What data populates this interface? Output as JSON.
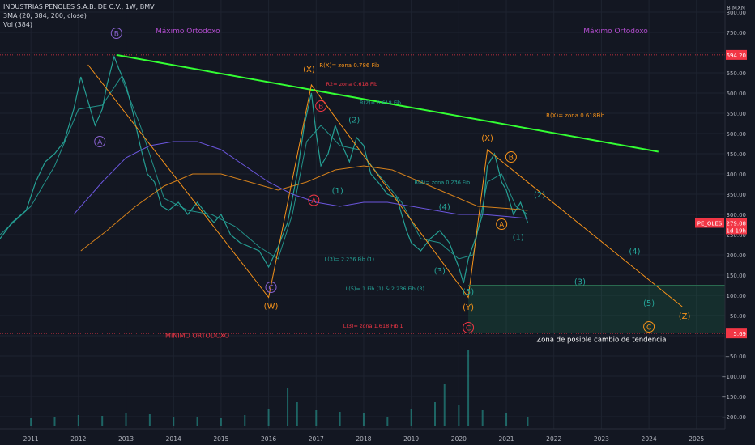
{
  "header": {
    "title": "INDUSTRIAS PENOLES S.A.B. DE C.V., 1W, BMV",
    "indicator_ma": "3MA (20, 384, 200, close)",
    "indicator_vol": "Vol (384)"
  },
  "chart_data": {
    "type": "line",
    "symbol": "PE_OLES",
    "currency_label": "8 MXN",
    "last_price": "279.08",
    "countdown": "1d 19h",
    "y_ticks": [
      -200,
      -150,
      -100,
      -50,
      0,
      50,
      100,
      150,
      200,
      250,
      300,
      350,
      400,
      450,
      500,
      550,
      600,
      650,
      700,
      750,
      800
    ],
    "y_tick_labels": [
      "−200.00",
      "−150.00",
      "−100.00",
      "−50.00",
      "0.00",
      "50.00",
      "100.00",
      "150.00",
      "200.00",
      "250.00",
      "300.00",
      "350.00",
      "400.00",
      "450.00",
      "500.00",
      "550.00",
      "600.00",
      "650.00",
      "700.00",
      "750.00",
      "800.00"
    ],
    "ylim": [
      -230,
      830
    ],
    "x_ticks": [
      2011,
      2012,
      2013,
      2014,
      2015,
      2016,
      2017,
      2018,
      2019,
      2020,
      2021,
      2022,
      2023,
      2024,
      2025
    ],
    "x_tick_labels": [
      "2011",
      "2012",
      "2013",
      "2014",
      "2015",
      "2016",
      "2017",
      "2018",
      "2019",
      "2020",
      "2021",
      "2022",
      "2023",
      "2024",
      "2025"
    ],
    "xlim": [
      2010.35,
      2025.6
    ],
    "price_markers": [
      {
        "value": 694.2,
        "label": "694.20"
      },
      {
        "value": 5.69,
        "label": "5.69"
      }
    ],
    "series": [
      {
        "name": "price",
        "color": "#26a69a",
        "x": [
          2010.35,
          2010.6,
          2010.9,
          2011.1,
          2011.3,
          2011.5,
          2011.7,
          2011.9,
          2012.05,
          2012.2,
          2012.35,
          2012.5,
          2012.6,
          2012.75,
          2012.85,
          2013.0,
          2013.15,
          2013.3,
          2013.45,
          2013.6,
          2013.75,
          2013.9,
          2014.1,
          2014.3,
          2014.5,
          2014.7,
          2014.85,
          2015.0,
          2015.2,
          2015.4,
          2015.6,
          2015.8,
          2016.0,
          2016.2,
          2016.4,
          2016.6,
          2016.75,
          2016.9,
          2017.0,
          2017.1,
          2017.25,
          2017.4,
          2017.55,
          2017.7,
          2017.85,
          2018.0,
          2018.15,
          2018.3,
          2018.5,
          2018.7,
          2018.9,
          2019.0,
          2019.2,
          2019.4,
          2019.6,
          2019.8,
          2020.0,
          2020.1,
          2020.2,
          2020.35,
          2020.5,
          2020.6,
          2020.75,
          2020.9,
          2021.0,
          2021.15,
          2021.3,
          2021.45
        ],
        "values": [
          240,
          280,
          310,
          380,
          430,
          450,
          480,
          560,
          640,
          580,
          520,
          560,
          620,
          690,
          660,
          620,
          550,
          470,
          400,
          380,
          320,
          310,
          330,
          300,
          330,
          300,
          280,
          300,
          250,
          230,
          220,
          210,
          170,
          220,
          280,
          400,
          520,
          600,
          500,
          420,
          450,
          520,
          470,
          430,
          490,
          470,
          400,
          380,
          350,
          340,
          260,
          230,
          210,
          240,
          260,
          230,
          170,
          130,
          190,
          240,
          300,
          420,
          450,
          380,
          360,
          300,
          330,
          280
        ]
      },
      {
        "name": "ma20",
        "color": "#26a69a",
        "x": [
          2010.35,
          2011.0,
          2011.5,
          2012.0,
          2012.5,
          2012.9,
          2013.3,
          2013.8,
          2014.3,
          2014.8,
          2015.3,
          2015.8,
          2016.2,
          2016.5,
          2016.8,
          2017.1,
          2017.5,
          2017.9,
          2018.3,
          2018.8,
          2019.2,
          2019.6,
          2020.0,
          2020.3,
          2020.6,
          2020.9,
          2021.2,
          2021.45
        ],
        "values": [
          250,
          320,
          420,
          560,
          570,
          640,
          520,
          340,
          310,
          300,
          270,
          220,
          190,
          300,
          480,
          520,
          470,
          460,
          400,
          330,
          240,
          230,
          190,
          200,
          380,
          400,
          320,
          300
        ]
      },
      {
        "name": "ma384",
        "color": "#7b61ff",
        "x": [
          2011.9,
          2012.5,
          2013.0,
          2013.5,
          2014.0,
          2014.5,
          2015.0,
          2015.5,
          2016.0,
          2016.5,
          2017.0,
          2017.5,
          2018.0,
          2018.5,
          2019.0,
          2019.5,
          2020.0,
          2020.5,
          2021.0,
          2021.45
        ],
        "values": [
          300,
          380,
          440,
          470,
          480,
          480,
          460,
          420,
          380,
          350,
          330,
          320,
          330,
          330,
          320,
          310,
          300,
          300,
          295,
          290
        ]
      },
      {
        "name": "ma200",
        "color": "#f7931a",
        "x": [
          2012.05,
          2012.6,
          2013.2,
          2013.8,
          2014.4,
          2015.0,
          2015.6,
          2016.2,
          2016.8,
          2017.4,
          2018.0,
          2018.6,
          2019.2,
          2019.8,
          2020.4,
          2021.0,
          2021.45
        ],
        "values": [
          210,
          260,
          320,
          370,
          400,
          400,
          380,
          360,
          380,
          410,
          420,
          410,
          380,
          350,
          320,
          315,
          310
        ]
      }
    ],
    "volume": {
      "color": "#26a69a",
      "x": [
        2011.0,
        2011.5,
        2012.0,
        2012.5,
        2013.0,
        2013.5,
        2014.0,
        2014.5,
        2015.0,
        2015.5,
        2016.0,
        2016.4,
        2016.6,
        2017.0,
        2017.5,
        2018.0,
        2018.5,
        2019.0,
        2019.5,
        2019.7,
        2020.0,
        2020.2,
        2020.5,
        2021.0,
        2021.45
      ],
      "values": [
        10,
        12,
        14,
        13,
        16,
        15,
        12,
        11,
        10,
        14,
        22,
        48,
        30,
        20,
        18,
        16,
        12,
        22,
        30,
        52,
        26,
        95,
        20,
        16,
        12
      ]
    },
    "lines": [
      {
        "color": "#33ff33",
        "width": 2,
        "points": [
          [
            2012.8,
            694.2
          ],
          [
            2024.2,
            455
          ]
        ]
      },
      {
        "color": "#f7931a",
        "width": 1,
        "points": [
          [
            2012.2,
            670
          ],
          [
            2016.0,
            95
          ],
          [
            2016.9,
            620
          ],
          [
            2020.2,
            95
          ],
          [
            2020.6,
            460
          ],
          [
            2024.7,
            72
          ]
        ]
      },
      {
        "color": "#2a6a4f",
        "width": 1,
        "points": [
          [
            2020.2,
            125
          ],
          [
            2025.6,
            125
          ]
        ]
      }
    ],
    "zone": {
      "x0": 2020.2,
      "x1": 2025.6,
      "y0": 5.69,
      "y1": 125,
      "fill": "rgba(38,166,105,0.16)"
    },
    "wave_labels": [
      {
        "text": "B",
        "x": 2012.8,
        "y": 748,
        "color": "#8a63d2",
        "circle": true
      },
      {
        "text": "A",
        "x": 2012.45,
        "y": 480,
        "color": "#8a63d2",
        "circle": true
      },
      {
        "text": "C",
        "x": 2016.05,
        "y": 120,
        "color": "#8a63d2",
        "circle": true
      },
      {
        "text": "(W)",
        "x": 2016.05,
        "y": 75,
        "color": "#f7931a"
      },
      {
        "text": "(X)",
        "x": 2016.85,
        "y": 660,
        "color": "#f7931a"
      },
      {
        "text": "B",
        "x": 2017.1,
        "y": 568,
        "color": "#f23645",
        "circle": true
      },
      {
        "text": "A",
        "x": 2016.95,
        "y": 335,
        "color": "#f23645",
        "circle": true
      },
      {
        "text": "(2)",
        "x": 2017.8,
        "y": 535,
        "color": "#26a69a"
      },
      {
        "text": "(1)",
        "x": 2017.45,
        "y": 360,
        "color": "#26a69a"
      },
      {
        "text": "(4)",
        "x": 2019.7,
        "y": 320,
        "color": "#26a69a"
      },
      {
        "text": "(3)",
        "x": 2019.6,
        "y": 162,
        "color": "#26a69a"
      },
      {
        "text": "(5)",
        "x": 2020.2,
        "y": 110,
        "color": "#26a69a"
      },
      {
        "text": "(Y)",
        "x": 2020.2,
        "y": 72,
        "color": "#f7931a"
      },
      {
        "text": "C",
        "x": 2020.2,
        "y": 20,
        "color": "#f23645",
        "circle": true
      },
      {
        "text": "(X)",
        "x": 2020.6,
        "y": 490,
        "color": "#f7931a"
      },
      {
        "text": "B",
        "x": 2021.1,
        "y": 442,
        "color": "#f7931a",
        "circle": true
      },
      {
        "text": "A",
        "x": 2020.9,
        "y": 276,
        "color": "#f7931a",
        "circle": true
      },
      {
        "text": "(1)",
        "x": 2021.25,
        "y": 245,
        "color": "#26a69a"
      },
      {
        "text": "(2)",
        "x": 2021.7,
        "y": 350,
        "color": "#26a69a"
      },
      {
        "text": "(3)",
        "x": 2022.55,
        "y": 135,
        "color": "#26a69a"
      },
      {
        "text": "(4)",
        "x": 2023.7,
        "y": 210,
        "color": "#26a69a"
      },
      {
        "text": "(5)",
        "x": 2024.0,
        "y": 82,
        "color": "#26a69a"
      },
      {
        "text": "C",
        "x": 2024.0,
        "y": 22,
        "color": "#f7931a",
        "circle": true
      },
      {
        "text": "(Z)",
        "x": 2024.75,
        "y": 50,
        "color": "#f7931a"
      }
    ],
    "annotations": [
      {
        "text": "Máximo Ortodoxo",
        "x": 2014.3,
        "y": 748,
        "color": "#b04ccc",
        "size": 9
      },
      {
        "text": "Máximo Ortodoxo",
        "x": 2023.3,
        "y": 748,
        "color": "#b04ccc",
        "size": 9
      },
      {
        "text": "MINIMO ORTODOXO",
        "x": 2014.5,
        "y": -5,
        "color": "#f23645",
        "size": 8
      },
      {
        "text": "R(X)= zona 0.786 Fib",
        "x": 2017.7,
        "y": 664,
        "color": "#f7931a",
        "size": 7
      },
      {
        "text": "R2= zona 0.618 Fib",
        "x": 2017.75,
        "y": 618,
        "color": "#f23645",
        "size": 6.5
      },
      {
        "text": "R(2)= 0.618 Fib",
        "x": 2018.35,
        "y": 572,
        "color": "#26a69a",
        "size": 6.5
      },
      {
        "text": "R(X)= zona 0.618Fib",
        "x": 2022.45,
        "y": 540,
        "color": "#f7931a",
        "size": 7
      },
      {
        "text": "R(4)= zona 0.236 Fib",
        "x": 2019.65,
        "y": 375,
        "color": "#26a69a",
        "size": 6.5
      },
      {
        "text": "L(3)= 2.236 Fib (1)",
        "x": 2017.7,
        "y": 185,
        "color": "#26a69a",
        "size": 6.5
      },
      {
        "text": "L(5)= 1 Fib (1) & 2.236 Fib (3)",
        "x": 2018.45,
        "y": 112,
        "color": "#26a69a",
        "size": 6.5
      },
      {
        "text": "L(3)= zona 1.618 Fib 1",
        "x": 2018.2,
        "y": 20,
        "color": "#f23645",
        "size": 6.5
      },
      {
        "text": "Zona de posible cambio de tendencia",
        "x": 2023.0,
        "y": -15,
        "color": "#ffffff",
        "size": 8.5
      }
    ]
  }
}
